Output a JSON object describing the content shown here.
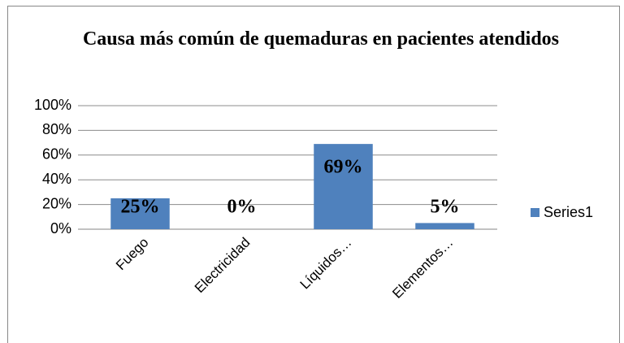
{
  "chart_data": {
    "type": "bar",
    "title": "Causa más común de quemaduras en pacientes atendidos",
    "categories": [
      "Fuego",
      "Electricidad",
      "Líquidos…",
      "Elementos…"
    ],
    "series": [
      {
        "name": "Series1",
        "color": "#4f81bd",
        "values": [
          25,
          0,
          69,
          5
        ],
        "value_labels": [
          "25%",
          "0%",
          "69%",
          "5%"
        ]
      }
    ],
    "ylim": [
      0,
      100
    ],
    "yticks": [
      {
        "value": 0,
        "label": "0%"
      },
      {
        "value": 20,
        "label": "20%"
      },
      {
        "value": 40,
        "label": "40%"
      },
      {
        "value": 60,
        "label": "60%"
      },
      {
        "value": 80,
        "label": "80%"
      },
      {
        "value": 100,
        "label": "100%"
      }
    ],
    "grid": true,
    "legend": "right"
  }
}
